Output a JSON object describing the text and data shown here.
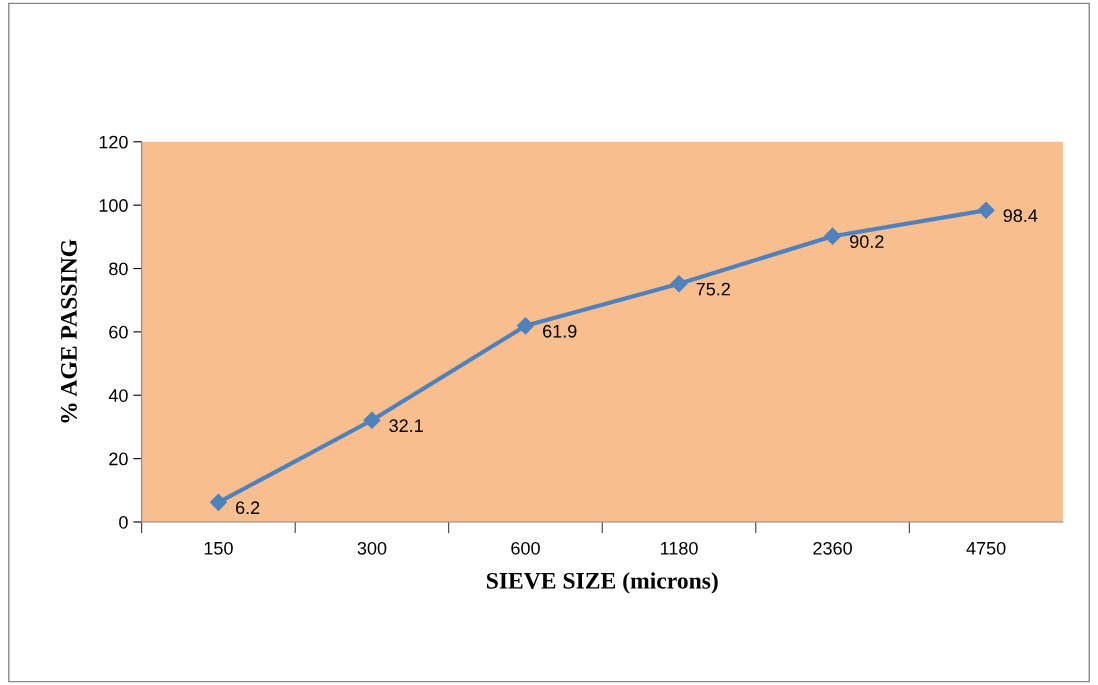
{
  "chart_data": {
    "type": "line",
    "xlabel": "SIEVE SIZE (microns)",
    "ylabel": "% AGE PASSING",
    "categories": [
      "150",
      "300",
      "600",
      "1180",
      "2360",
      "4750"
    ],
    "series": [
      {
        "color": "#4f81bd",
        "values": [
          6.2,
          32.1,
          61.9,
          75.2,
          90.2,
          98.4
        ]
      }
    ],
    "ylim": [
      0,
      120
    ],
    "yticks": [
      0,
      20,
      40,
      60,
      80,
      100,
      120
    ],
    "data_labels": true,
    "marker": "diamond",
    "line_style": "solid",
    "grid": false,
    "legend": false
  }
}
